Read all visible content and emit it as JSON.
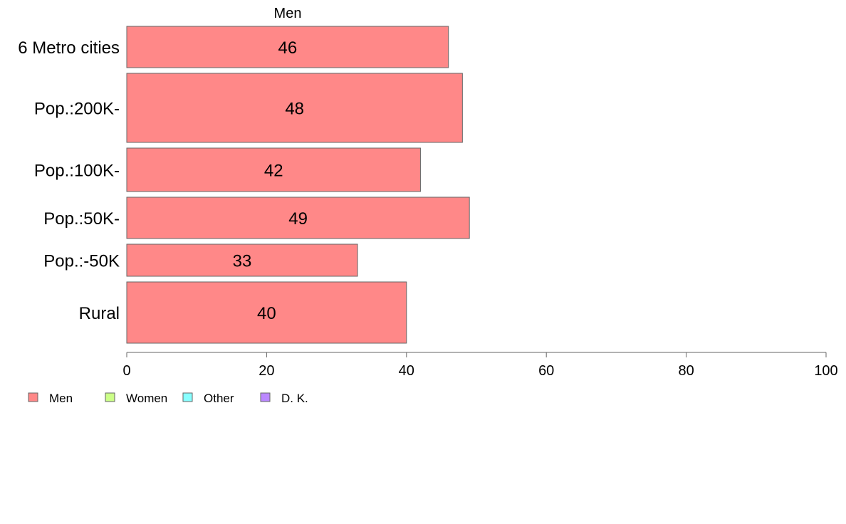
{
  "chart_data": {
    "type": "bar",
    "orientation": "horizontal",
    "title": "Men",
    "categories": [
      "6 Metro cities",
      "Pop.:200K-",
      "Pop.:100K-",
      "Pop.:50K-",
      "Pop.:-50K",
      "Rural"
    ],
    "series": [
      {
        "name": "Men",
        "values": [
          46,
          48,
          42,
          49,
          33,
          40
        ],
        "color": "#ff8888"
      }
    ],
    "xlim": [
      0,
      100
    ],
    "xticks": [
      0,
      20,
      40,
      60,
      80,
      100
    ],
    "grid": false,
    "legend": {
      "placement": "bottom-left",
      "items": [
        {
          "label": "Men",
          "color": "#ff8888"
        },
        {
          "label": "Women",
          "color": "#ccff88"
        },
        {
          "label": "Other",
          "color": "#88ffff"
        },
        {
          "label": "D. K.",
          "color": "#bb88ff"
        }
      ]
    }
  }
}
